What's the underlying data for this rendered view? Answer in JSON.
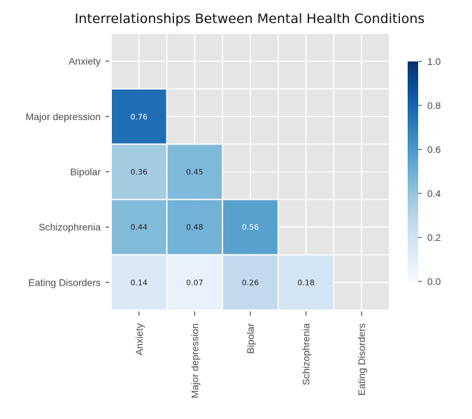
{
  "chart_data": {
    "type": "heatmap",
    "title": "Interrelationships Between Mental Health Conditions",
    "xlabel": "",
    "ylabel": "",
    "categories": [
      "Anxiety",
      "Major depression",
      "Bipolar",
      "Schizophrenia",
      "Eating Disorders"
    ],
    "mask": "upper triangle including diagonal",
    "matrix": [
      [
        null,
        null,
        null,
        null,
        null
      ],
      [
        0.76,
        null,
        null,
        null,
        null
      ],
      [
        0.36,
        0.45,
        null,
        null,
        null
      ],
      [
        0.44,
        0.48,
        0.56,
        null,
        null
      ],
      [
        0.14,
        0.07,
        0.26,
        0.18,
        null
      ]
    ],
    "value_labels": [
      [
        null,
        null,
        null,
        null,
        null
      ],
      [
        "0.76",
        null,
        null,
        null,
        null
      ],
      [
        "0.36",
        "0.45",
        null,
        null,
        null
      ],
      [
        "0.44",
        "0.48",
        "0.56",
        null,
        null
      ],
      [
        "0.14",
        "0.07",
        "0.26",
        "0.18",
        null
      ]
    ],
    "colorbar": {
      "range": [
        0,
        1
      ],
      "ticks": [
        "0.0",
        "0.2",
        "0.4",
        "0.6",
        "0.8",
        "1.0"
      ],
      "colormap": "Blues",
      "low_color": "#f7fbff",
      "high_color": "#08306b"
    },
    "grid": true,
    "background_color": "#e5e5e5"
  }
}
